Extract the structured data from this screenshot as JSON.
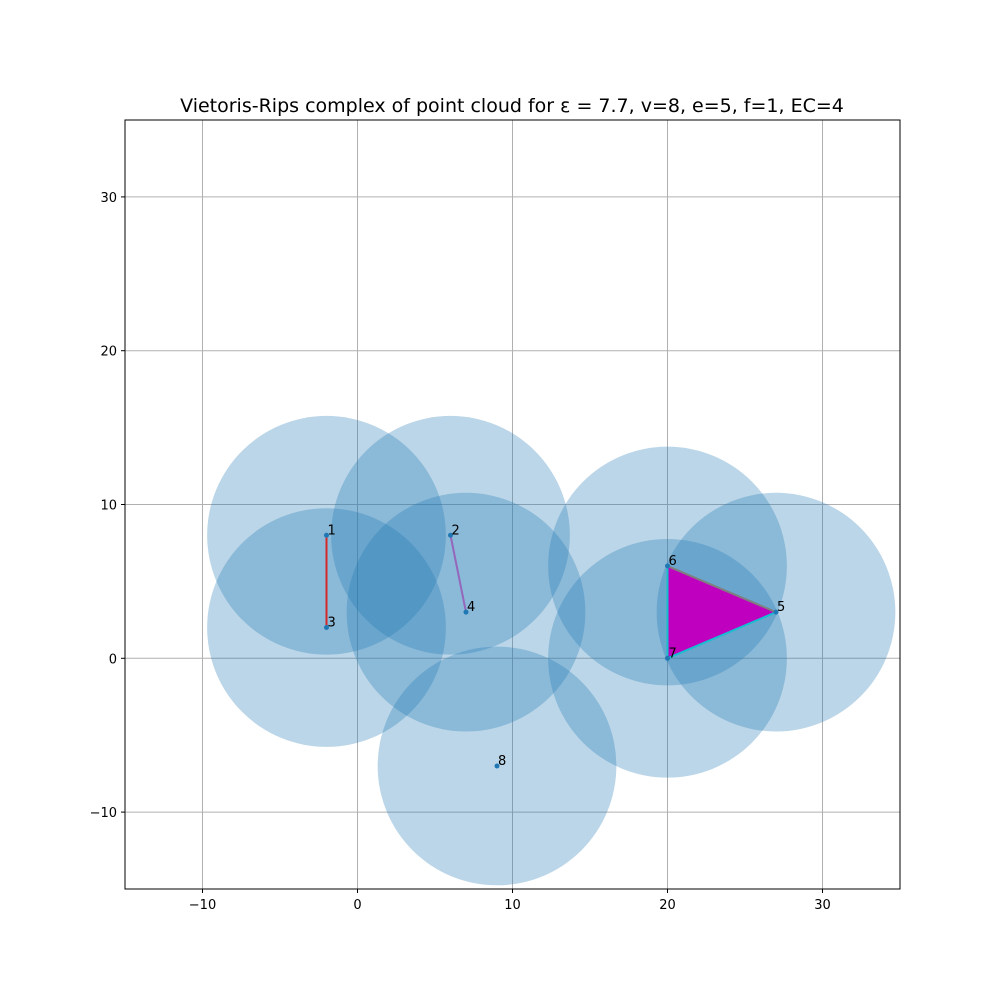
{
  "chart_data": {
    "type": "scatter",
    "title": "Vietoris-Rips complex of point cloud for ε = 7.7, v=8, e=5, f=1, EC=4",
    "xlabel": "",
    "ylabel": "",
    "xlim": [
      -15,
      35
    ],
    "ylim": [
      -15,
      35
    ],
    "xticks": [
      -10,
      0,
      10,
      20,
      30
    ],
    "yticks": [
      -10,
      0,
      10,
      20,
      30
    ],
    "xtick_labels": [
      "−10",
      "0",
      "10",
      "20",
      "30"
    ],
    "ytick_labels": [
      "−10",
      "0",
      "10",
      "20",
      "30"
    ],
    "grid": true,
    "radius": 7.7,
    "points": [
      {
        "label": "1",
        "x": -2,
        "y": 8
      },
      {
        "label": "2",
        "x": 6,
        "y": 8
      },
      {
        "label": "3",
        "x": -2,
        "y": 2
      },
      {
        "label": "4",
        "x": 7,
        "y": 3
      },
      {
        "label": "5",
        "x": 27,
        "y": 3
      },
      {
        "label": "6",
        "x": 20,
        "y": 6
      },
      {
        "label": "7",
        "x": 20,
        "y": 0
      },
      {
        "label": "8",
        "x": 9,
        "y": -7
      }
    ],
    "edges": [
      {
        "from": 1,
        "to": 3,
        "color": "#d62728"
      },
      {
        "from": 2,
        "to": 4,
        "color": "#9467bd"
      },
      {
        "from": 6,
        "to": 5,
        "color": "#7f7f7f"
      },
      {
        "from": 6,
        "to": 7,
        "color": "#17becf"
      },
      {
        "from": 7,
        "to": 5,
        "color": "#17becf"
      }
    ],
    "faces": [
      {
        "vertices": [
          5,
          6,
          7
        ],
        "color": "#bf00bf"
      }
    ],
    "colors": {
      "circle": "#1f77b4",
      "point": "#1f77b4",
      "grid": "#b0b0b0"
    }
  }
}
